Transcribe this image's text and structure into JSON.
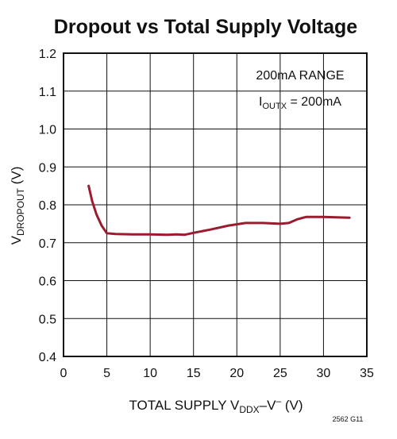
{
  "chart_data": {
    "type": "line",
    "title": "Dropout vs Total Supply Voltage",
    "xlabel": {
      "prefix": "TOTAL SUPPLY V",
      "sub": "DDX",
      "suffix": "–V",
      "sup": "–",
      "unit": " (V)"
    },
    "ylabel": {
      "prefix": "V",
      "sub": "DROPOUT",
      "unit": " (V)"
    },
    "xlim": [
      0,
      35
    ],
    "ylim": [
      0.4,
      1.2
    ],
    "x_ticks": [
      0,
      5,
      10,
      15,
      20,
      25,
      30,
      35
    ],
    "y_ticks": [
      0.4,
      0.5,
      0.6,
      0.7,
      0.8,
      0.9,
      1.0,
      1.1,
      1.2
    ],
    "x_tick_labels": [
      "0",
      "5",
      "10",
      "15",
      "20",
      "25",
      "30",
      "35"
    ],
    "y_tick_labels": [
      "0.4",
      "0.5",
      "0.6",
      "0.7",
      "0.8",
      "0.9",
      "1.0",
      "1.1",
      "1.2"
    ],
    "grid": true,
    "series": [
      {
        "color": "#9b1c2f",
        "x": [
          2.9,
          3.3,
          3.8,
          4.4,
          5.0,
          6,
          8,
          10,
          12,
          13,
          14,
          15,
          17,
          19,
          21,
          23,
          25,
          26,
          27,
          28,
          30,
          33
        ],
        "y": [
          0.85,
          0.81,
          0.775,
          0.745,
          0.725,
          0.723,
          0.722,
          0.722,
          0.721,
          0.722,
          0.721,
          0.726,
          0.735,
          0.745,
          0.752,
          0.752,
          0.75,
          0.752,
          0.762,
          0.768,
          0.768,
          0.766
        ]
      }
    ],
    "annotations": [
      "200mA RANGE",
      {
        "prefix": "I",
        "sub": "OUTX",
        "suffix": " = 200mA"
      }
    ]
  },
  "figure_id": "2562 G11"
}
